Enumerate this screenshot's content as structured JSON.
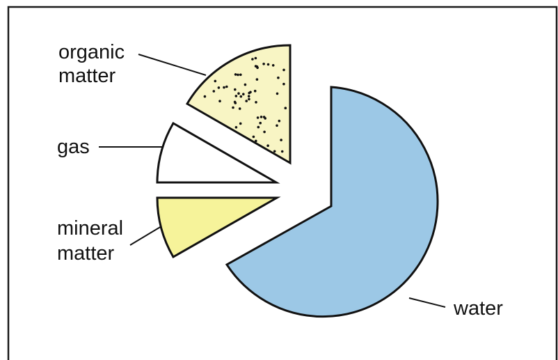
{
  "chart_data": {
    "type": "pie",
    "categories": [
      "water",
      "organic matter",
      "gas",
      "mineral matter"
    ],
    "values": [
      66,
      10,
      8,
      8
    ],
    "labels": {
      "water": [
        "water"
      ],
      "organic": [
        "organic",
        "matter"
      ],
      "gas": [
        "gas"
      ],
      "mineral": [
        "mineral",
        "matter"
      ]
    },
    "colors": {
      "water": "#9cc8e6",
      "organic": "#f8f5c4",
      "gas": "#ffffff",
      "mineral": "#f6f39a",
      "outline": "#111111"
    },
    "patterns": {
      "organic": "dotted"
    },
    "exploded": true,
    "legend": "none"
  }
}
